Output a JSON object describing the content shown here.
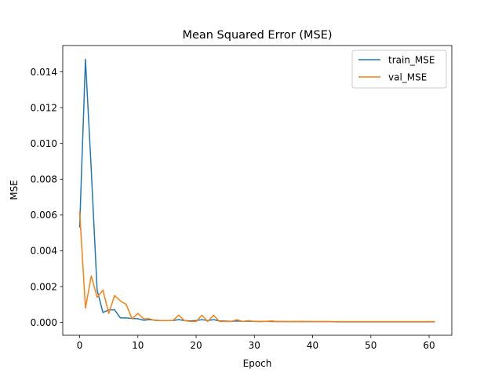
{
  "chart_data": {
    "type": "line",
    "title": "Mean Squared Error (MSE)",
    "xlabel": "Epoch",
    "ylabel": "MSE",
    "xlim": [
      -2.9,
      63.9
    ],
    "ylim": [
      -0.00072,
      0.01547
    ],
    "xticks": [
      0,
      10,
      20,
      30,
      40,
      50,
      60
    ],
    "yticks": [
      0.0,
      0.002,
      0.004,
      0.006,
      0.008,
      0.01,
      0.012,
      0.014
    ],
    "ytick_labels": [
      "0.000",
      "0.002",
      "0.004",
      "0.006",
      "0.008",
      "0.010",
      "0.012",
      "0.014"
    ],
    "grid": false,
    "legend_position": "upper-right",
    "x": [
      0,
      1,
      2,
      3,
      4,
      5,
      6,
      7,
      8,
      9,
      10,
      11,
      12,
      13,
      14,
      15,
      16,
      17,
      18,
      19,
      20,
      21,
      22,
      23,
      24,
      25,
      26,
      27,
      28,
      29,
      30,
      31,
      32,
      33,
      34,
      35,
      36,
      37,
      38,
      39,
      40,
      41,
      42,
      43,
      44,
      45,
      46,
      47,
      48,
      49,
      50,
      51,
      52,
      53,
      54,
      55,
      56,
      57,
      58,
      59,
      60,
      61
    ],
    "series": [
      {
        "name": "train_MSE",
        "color": "#1f77b4",
        "values": [
          0.0053,
          0.0147,
          0.0085,
          0.0018,
          0.00055,
          0.0007,
          0.0007,
          0.00025,
          0.00025,
          0.00022,
          0.0002,
          0.00012,
          0.00015,
          0.00012,
          0.0001,
          0.0001,
          0.0001,
          0.00015,
          0.0001,
          8e-05,
          0.0001,
          0.00015,
          0.0001,
          0.00015,
          8e-05,
          7e-05,
          6e-05,
          8e-05,
          6e-05,
          7e-05,
          6e-05,
          5e-05,
          6e-05,
          5e-05,
          5e-05,
          5e-05,
          4e-05,
          5e-05,
          4e-05,
          4e-05,
          4e-05,
          4e-05,
          4e-05,
          4e-05,
          3e-05,
          3e-05,
          3e-05,
          3e-05,
          3e-05,
          3e-05,
          3e-05,
          3e-05,
          3e-05,
          3e-05,
          3e-05,
          3e-05,
          3e-05,
          3e-05,
          3e-05,
          3e-05,
          3e-05,
          3e-05
        ]
      },
      {
        "name": "val_MSE",
        "color": "#ff7f0e",
        "values": [
          0.0062,
          0.0008,
          0.0026,
          0.0014,
          0.0018,
          0.0005,
          0.0015,
          0.0012,
          0.001,
          0.0002,
          0.0005,
          0.0002,
          0.0002,
          0.0001,
          0.0001,
          0.0001,
          0.0001,
          0.0004,
          0.0001,
          5e-05,
          5e-05,
          0.0004,
          5e-05,
          0.0004,
          5e-05,
          5e-05,
          5e-05,
          0.00015,
          5e-05,
          0.0001,
          5e-05,
          5e-05,
          6e-05,
          8e-05,
          4e-05,
          4e-05,
          4e-05,
          4e-05,
          6e-05,
          4e-05,
          4e-05,
          4e-05,
          5e-05,
          4e-05,
          4e-05,
          4e-05,
          4e-05,
          4e-05,
          4e-05,
          4e-05,
          4e-05,
          4e-05,
          4e-05,
          4e-05,
          4e-05,
          4e-05,
          4e-05,
          4e-05,
          4e-05,
          4e-05,
          4e-05,
          4e-05
        ]
      }
    ]
  }
}
